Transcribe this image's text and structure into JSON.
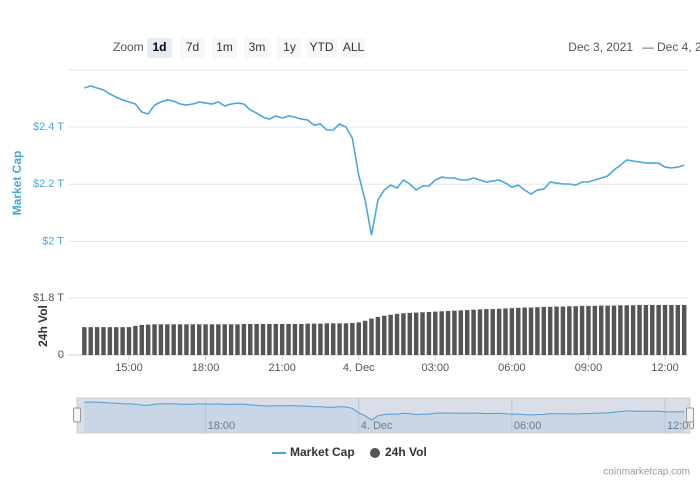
{
  "range_selector": {
    "label": "Zoom",
    "buttons": [
      "1d",
      "7d",
      "1m",
      "3m",
      "1y",
      "YTD",
      "ALL"
    ],
    "selected": "1d"
  },
  "date_range": {
    "from": "Dec 3, 2021",
    "separator": "—",
    "to": "Dec 4, 2"
  },
  "chart_data": {
    "type": "line",
    "x": [
      13.25,
      13.5,
      13.75,
      14,
      14.25,
      14.5,
      14.75,
      15,
      15.25,
      15.5,
      15.75,
      16,
      16.25,
      16.5,
      16.75,
      17,
      17.25,
      17.5,
      17.75,
      18,
      18.25,
      18.5,
      18.75,
      19,
      19.25,
      19.5,
      19.75,
      20,
      20.25,
      20.5,
      20.75,
      21,
      21.25,
      21.5,
      21.75,
      22,
      22.25,
      22.5,
      22.75,
      23,
      23.25,
      23.5,
      23.75,
      24,
      24.25,
      24.5,
      24.75,
      25,
      25.25,
      25.5,
      25.75,
      26,
      26.25,
      26.5,
      26.75,
      27,
      27.25,
      27.5,
      27.75,
      28,
      28.25,
      28.5,
      28.75,
      29,
      29.25,
      29.5,
      29.75,
      30,
      30.25,
      30.5,
      30.75,
      31,
      31.25,
      31.5,
      31.75,
      32,
      32.25,
      32.5,
      32.75,
      33,
      33.25,
      33.5,
      33.75,
      34,
      34.25,
      34.5,
      34.75,
      35,
      35.25,
      35.5,
      35.75,
      36,
      36.25,
      36.5,
      36.75
    ],
    "xlim": [
      13.08,
      36.9
    ],
    "xticks": [
      {
        "value": 15,
        "label": "15:00"
      },
      {
        "value": 18,
        "label": "18:00"
      },
      {
        "value": 21,
        "label": "21:00"
      },
      {
        "value": 24,
        "label": "4. Dec"
      },
      {
        "value": 27,
        "label": "03:00"
      },
      {
        "value": 30,
        "label": "06:00"
      },
      {
        "value": 33,
        "label": "09:00"
      },
      {
        "value": 36,
        "label": "12:00"
      }
    ],
    "navigator_xticks": [
      {
        "value": 18,
        "label": "18:00"
      },
      {
        "value": 24,
        "label": "4. Dec"
      },
      {
        "value": 30,
        "label": "06:00"
      },
      {
        "value": 36,
        "label": "12:00"
      }
    ],
    "ylabel": "Market Cap",
    "ylim": [
      1.9,
      2.6
    ],
    "yticks": [
      {
        "value": 2,
        "label": "$2 T"
      },
      {
        "value": 2.2,
        "label": "$2.2 T"
      },
      {
        "value": 2.4,
        "label": "$2.4 T"
      }
    ],
    "y2label": "24h Vol",
    "y2lim": [
      0,
      1.8
    ],
    "y2ticks": [
      0,
      {
        "value": 1.8,
        "label": "$1.8 T"
      }
    ],
    "grid": true,
    "series": [
      {
        "name": "Market Cap",
        "type": "line",
        "color": "#4aa8d8",
        "values": [
          2.537,
          2.544,
          2.537,
          2.53,
          2.516,
          2.505,
          2.495,
          2.488,
          2.481,
          2.453,
          2.446,
          2.477,
          2.488,
          2.495,
          2.491,
          2.481,
          2.477,
          2.481,
          2.488,
          2.484,
          2.481,
          2.488,
          2.474,
          2.481,
          2.484,
          2.481,
          2.46,
          2.449,
          2.435,
          2.428,
          2.439,
          2.432,
          2.439,
          2.435,
          2.428,
          2.425,
          2.407,
          2.411,
          2.39,
          2.39,
          2.411,
          2.4,
          2.362,
          2.232,
          2.145,
          2.022,
          2.145,
          2.18,
          2.197,
          2.187,
          2.215,
          2.201,
          2.18,
          2.194,
          2.194,
          2.215,
          2.225,
          2.222,
          2.222,
          2.215,
          2.215,
          2.222,
          2.215,
          2.208,
          2.211,
          2.215,
          2.204,
          2.19,
          2.197,
          2.18,
          2.166,
          2.18,
          2.183,
          2.208,
          2.204,
          2.201,
          2.201,
          2.197,
          2.208,
          2.208,
          2.215,
          2.222,
          2.229,
          2.25,
          2.267,
          2.285,
          2.281,
          2.278,
          2.274,
          2.274,
          2.274,
          2.26,
          2.257,
          2.26,
          2.267
        ]
      },
      {
        "name": "24h Vol",
        "type": "bar",
        "axis": "y2",
        "color": "#555555",
        "values": [
          0.88,
          0.88,
          0.88,
          0.88,
          0.88,
          0.88,
          0.88,
          0.88,
          0.92,
          0.95,
          0.96,
          0.97,
          0.97,
          0.97,
          0.97,
          0.97,
          0.97,
          0.97,
          0.97,
          0.97,
          0.97,
          0.97,
          0.97,
          0.97,
          0.97,
          0.98,
          0.98,
          0.98,
          0.98,
          0.98,
          0.98,
          0.98,
          0.98,
          0.98,
          0.98,
          0.99,
          0.99,
          0.99,
          1,
          1,
          1,
          1,
          1.01,
          1.03,
          1.08,
          1.15,
          1.2,
          1.24,
          1.27,
          1.3,
          1.32,
          1.33,
          1.34,
          1.35,
          1.36,
          1.37,
          1.38,
          1.39,
          1.4,
          1.41,
          1.42,
          1.43,
          1.44,
          1.45,
          1.45,
          1.46,
          1.47,
          1.48,
          1.49,
          1.5,
          1.5,
          1.51,
          1.52,
          1.52,
          1.53,
          1.53,
          1.54,
          1.54,
          1.55,
          1.55,
          1.55,
          1.56,
          1.56,
          1.56,
          1.57,
          1.57,
          1.57,
          1.58,
          1.58,
          1.58,
          1.58,
          1.58,
          1.58,
          1.58,
          1.58
        ]
      }
    ]
  },
  "credit": "coinmarketcap.com"
}
